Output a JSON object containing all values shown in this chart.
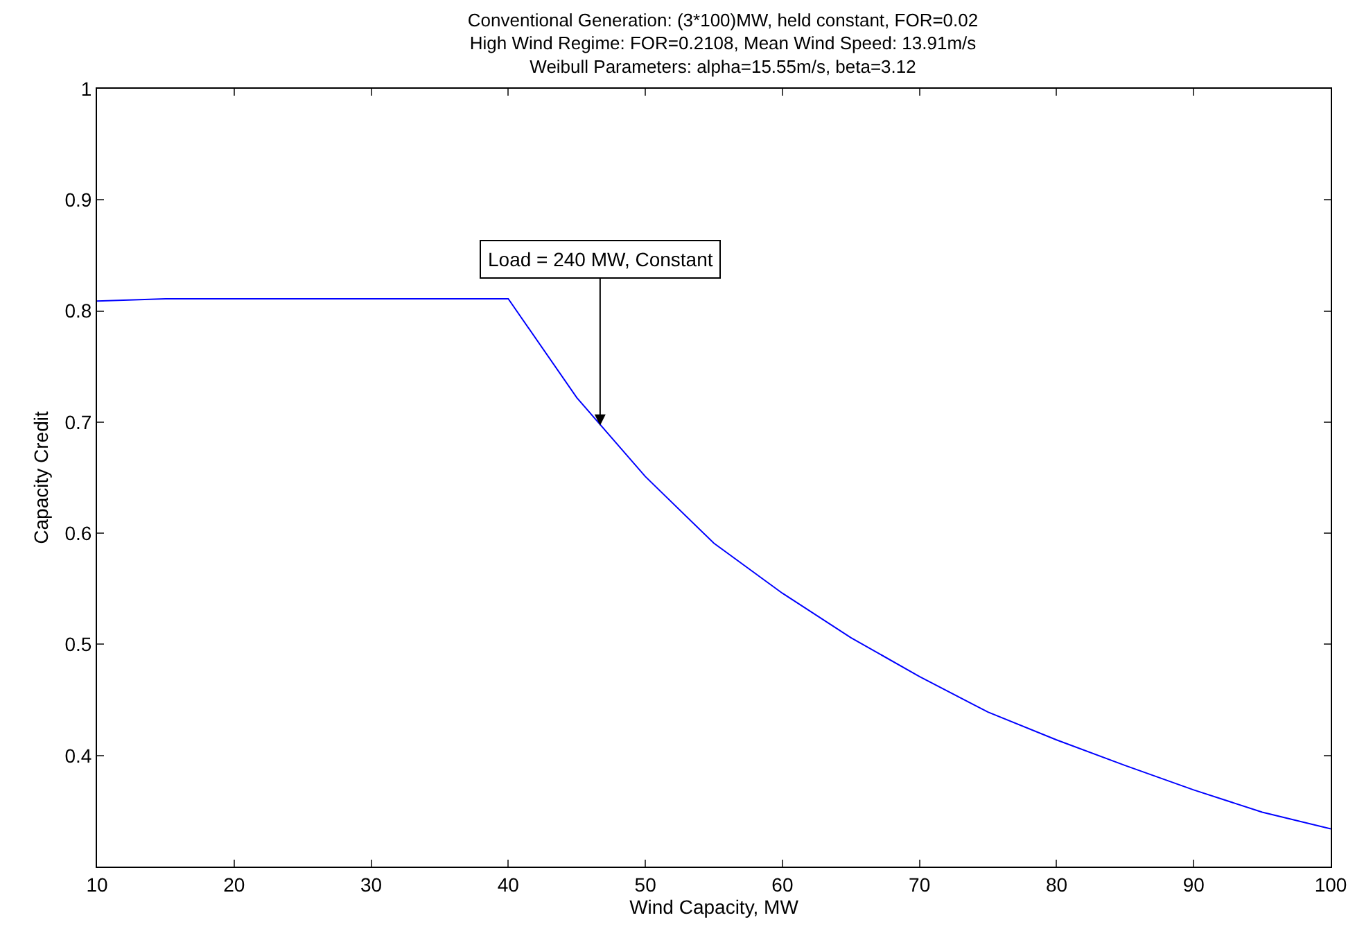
{
  "chart_data": {
    "type": "line",
    "title": "Conventional Generation: (3*100)MW, held constant, FOR=0.02\nHigh Wind Regime: FOR=0.2108, Mean Wind Speed: 13.91m/s\nWeibull Parameters: alpha=15.55m/s, beta=3.12",
    "xlabel": "Wind Capacity, MW",
    "ylabel": "Capacity Credit",
    "x": [
      10,
      15,
      20,
      25,
      30,
      35,
      40,
      45,
      50,
      55,
      60,
      65,
      70,
      75,
      80,
      85,
      90,
      95,
      100
    ],
    "series": [
      {
        "color": "#0000ff",
        "values": [
          0.809,
          0.811,
          0.811,
          0.811,
          0.811,
          0.811,
          0.811,
          0.722,
          0.651,
          0.591,
          0.546,
          0.506,
          0.471,
          0.439,
          0.414,
          0.391,
          0.369,
          0.349,
          0.334
        ]
      }
    ],
    "xlim": [
      10,
      100
    ],
    "ylim": [
      0.3,
      1
    ],
    "xticks": [
      10,
      20,
      30,
      40,
      50,
      60,
      70,
      80,
      90,
      100
    ],
    "yticks": [
      {
        "value": 0.3,
        "label": null
      },
      0.4,
      0.5,
      0.6,
      0.7,
      0.8,
      0.9,
      1
    ],
    "annotations": [
      {
        "text": "Load = 240 MW, Constant",
        "x": 46.7,
        "y": 0.697
      }
    ],
    "marker": "none",
    "line_style": "solid"
  }
}
